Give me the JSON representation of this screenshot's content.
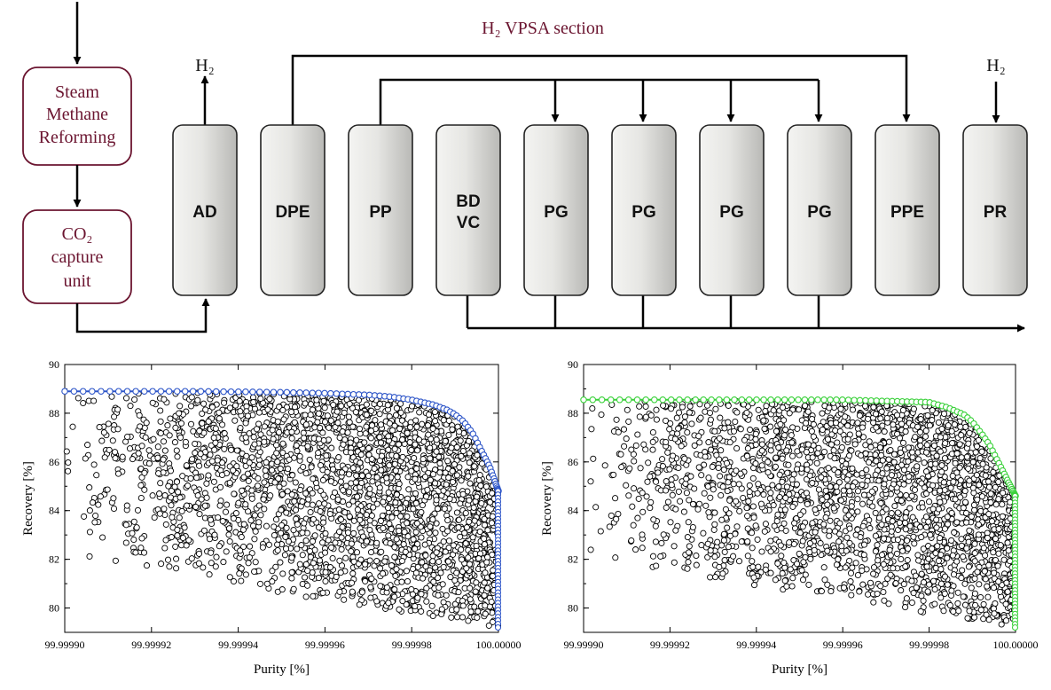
{
  "diagram": {
    "section_title": "H₂  VPSA section",
    "h2_left": "H₂",
    "h2_right": "H₂",
    "smr_lines": [
      "Steam",
      "Methane",
      "Reforming"
    ],
    "co2_lines": [
      "CO₂",
      "capture",
      "unit"
    ],
    "columns": [
      {
        "lines": [
          "AD"
        ]
      },
      {
        "lines": [
          "DPE"
        ]
      },
      {
        "lines": [
          "PP"
        ]
      },
      {
        "lines": [
          "BD",
          "VC"
        ]
      },
      {
        "lines": [
          "PG"
        ]
      },
      {
        "lines": [
          "PG"
        ]
      },
      {
        "lines": [
          "PG"
        ]
      },
      {
        "lines": [
          "PG"
        ]
      },
      {
        "lines": [
          "PPE"
        ]
      },
      {
        "lines": [
          "PR"
        ]
      }
    ],
    "colors": {
      "process_text": "#6b1530",
      "process_border": "#6b1530",
      "column_fill_light": "#f4f4f2",
      "column_fill_dark": "#b9b9b6",
      "line": "#000000"
    }
  },
  "chart_data": [
    {
      "type": "scatter",
      "title": "",
      "xlabel": "Purity [%]",
      "ylabel": "Recovery [%]",
      "xlim": [
        99.9999,
        100.0
      ],
      "ylim": [
        79,
        90
      ],
      "xticks": [
        "99.99990",
        "99.99992",
        "99.99994",
        "99.99996",
        "99.99998",
        "100.00000"
      ],
      "yticks": [
        "80",
        "82",
        "84",
        "86",
        "88",
        "90"
      ],
      "grid": false,
      "series": [
        {
          "kind": "pareto_front",
          "color": "#2d55c8",
          "x": [
            99.9999,
            99.99991,
            99.99992,
            99.99993,
            99.99994,
            99.99995,
            99.99996,
            99.99997,
            99.999975,
            99.99998,
            99.999985,
            99.999988,
            99.99999,
            99.999992,
            99.999994,
            99.999996,
            99.999998,
            100.0
          ],
          "y": [
            88.9,
            88.9,
            88.9,
            88.9,
            88.88,
            88.86,
            88.82,
            88.75,
            88.68,
            88.55,
            88.35,
            88.15,
            87.95,
            87.65,
            87.2,
            86.5,
            85.8,
            84.8
          ]
        },
        {
          "kind": "population",
          "color": "#000000",
          "count": 2600,
          "density_bias": "increasing toward 100.00000",
          "y_range_low_purity": [
            82,
            88.9
          ],
          "y_range_high_purity": [
            79.2,
            88.5
          ]
        }
      ]
    },
    {
      "type": "scatter",
      "title": "",
      "xlabel": "Purity [%]",
      "ylabel": "Recovery [%]",
      "xlim": [
        99.9999,
        100.0
      ],
      "ylim": [
        79,
        90
      ],
      "xticks": [
        "99.99990",
        "99.99992",
        "99.99994",
        "99.99996",
        "99.99998",
        "100.00000"
      ],
      "yticks": [
        "80",
        "82",
        "84",
        "86",
        "88",
        "90"
      ],
      "grid": false,
      "series": [
        {
          "kind": "pareto_front",
          "color": "#3ad13a",
          "x": [
            99.9999,
            99.99991,
            99.99992,
            99.99993,
            99.99994,
            99.99995,
            99.99996,
            99.99997,
            99.99998,
            99.999984,
            99.999988,
            99.99999,
            99.999992,
            99.999994,
            99.999996,
            99.999998,
            100.0
          ],
          "y": [
            88.55,
            88.55,
            88.55,
            88.55,
            88.55,
            88.55,
            88.55,
            88.5,
            88.45,
            88.25,
            87.95,
            87.65,
            87.2,
            86.7,
            86.0,
            85.3,
            84.6
          ]
        },
        {
          "kind": "population",
          "color": "#000000",
          "count": 2400,
          "density_bias": "increasing toward 100.00000",
          "y_range_low_purity": [
            82,
            88.5
          ],
          "y_range_high_purity": [
            79.2,
            88.2
          ]
        }
      ]
    }
  ]
}
